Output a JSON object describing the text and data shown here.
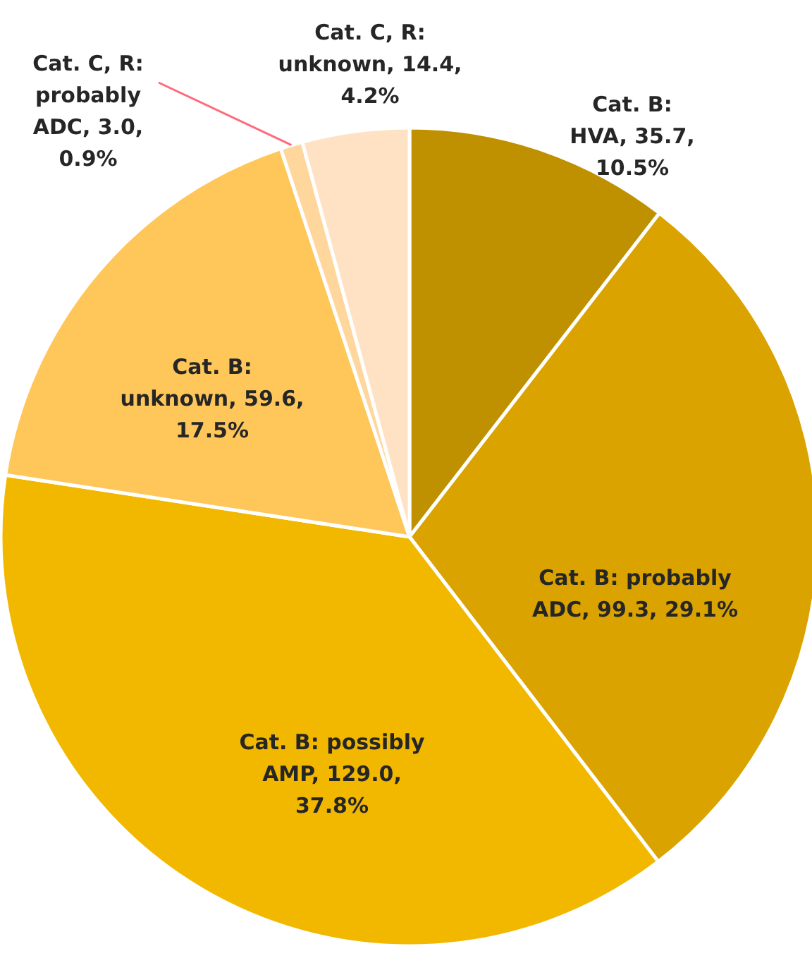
{
  "chart_data": {
    "type": "pie",
    "categories": [
      "Cat. B: HVA",
      "Cat. B: probably ADC",
      "Cat. B: possibly AMP",
      "Cat. B: unknown",
      "Cat. C, R: probably ADC",
      "Cat. C, R: unknown"
    ],
    "values": [
      35.7,
      99.3,
      129.0,
      59.6,
      3.0,
      14.4
    ],
    "value_labels": [
      "35.7, 10.5%",
      "99.3, 29.1%",
      "129.0, 37.8%",
      "59.6, 17.5%",
      "3.0, 0.9%",
      "14.4, 4.2%"
    ],
    "colors": [
      "#bf9000",
      "#daa300",
      "#f2b800",
      "#ffc65a",
      "#ffd79c",
      "#ffe2c4"
    ]
  }
}
